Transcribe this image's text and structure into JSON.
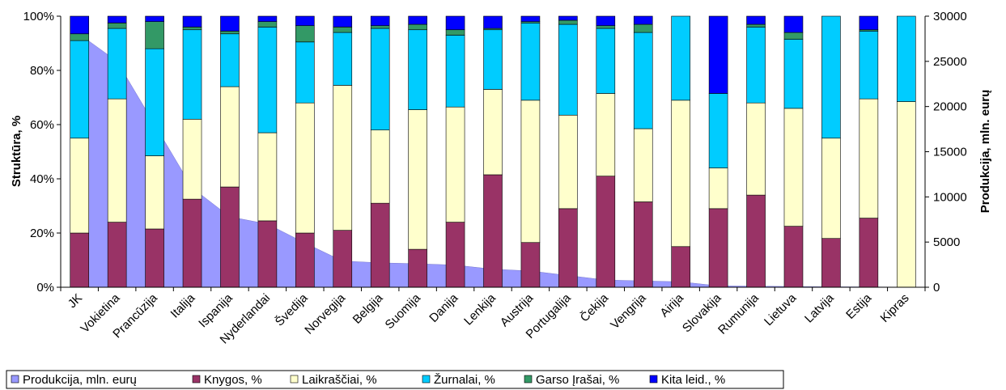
{
  "chart_data": {
    "type": "bar",
    "stacked": true,
    "categories": [
      "JK",
      "Vokietina",
      "Prancūzija",
      "Italija",
      "Ispanija",
      "Nyderlandai",
      "Švedija",
      "Norvegija",
      "Belgija",
      "Suomija",
      "Danija",
      "Lenkija",
      "Austrija",
      "Portugalija",
      "Čekija",
      "Vengrija",
      "Airija",
      "Slovakija",
      "Rumunija",
      "Lietuva",
      "Latvija",
      "Estija",
      "Kipras"
    ],
    "ylabel": "Struktūra, %",
    "y2label": "Produkcija, mln. eurų",
    "ylim": [
      0,
      100
    ],
    "y2lim": [
      0,
      30000
    ],
    "yticks": [
      "0%",
      "20%",
      "40%",
      "60%",
      "80%",
      "100%"
    ],
    "y2ticks": [
      "0",
      "5000",
      "10000",
      "15000",
      "20000",
      "25000",
      "30000"
    ],
    "legend_position": "bottom-left",
    "area_series": {
      "name": "Produkcija, mln. eurų",
      "color": "#9999ff",
      "values": [
        28000,
        25000,
        18000,
        11000,
        7800,
        7000,
        4900,
        2900,
        2700,
        2600,
        2450,
        2000,
        1800,
        1300,
        800,
        700,
        600,
        150,
        120,
        80,
        50,
        40,
        10
      ]
    },
    "series": [
      {
        "name": "Knygos, %",
        "color": "#993366",
        "values": [
          20,
          24,
          21.5,
          32.5,
          37,
          24.5,
          20,
          21,
          31,
          14,
          24,
          41.5,
          16.5,
          29,
          41,
          31.5,
          15,
          29,
          34,
          22.5,
          18,
          25.5,
          0
        ]
      },
      {
        "name": "Laikraščiai, %",
        "color": "#ffffcc",
        "values": [
          35,
          45.5,
          27,
          29.5,
          37,
          32.5,
          48,
          53.5,
          27,
          51.5,
          42.5,
          31.5,
          52.5,
          34.5,
          30.5,
          27,
          54,
          15,
          34,
          43.5,
          37,
          44,
          68.5
        ]
      },
      {
        "name": "Žurnalai, %",
        "color": "#00ccff",
        "values": [
          36,
          26,
          39.5,
          33,
          19.5,
          39,
          22.5,
          19.5,
          37.5,
          29.5,
          26.5,
          22,
          28.5,
          33.5,
          24,
          35.5,
          31,
          27.5,
          28,
          25.5,
          45,
          25,
          31.5
        ]
      },
      {
        "name": "Garso Įrašai, %",
        "color": "#339966",
        "values": [
          2.5,
          2,
          10,
          1,
          1,
          2,
          6,
          2,
          1,
          2,
          2,
          0.5,
          0.5,
          1.5,
          1,
          3,
          0,
          0,
          1,
          2.5,
          0,
          0.5,
          0
        ]
      },
      {
        "name": "Kita leid., %",
        "color": "#0000ff",
        "values": [
          6.5,
          2.5,
          2,
          4,
          5.5,
          2,
          3.5,
          4,
          3.5,
          3,
          5,
          4.5,
          2,
          1.5,
          3.5,
          3,
          0,
          28.5,
          3,
          6,
          0,
          5,
          0
        ]
      }
    ]
  }
}
